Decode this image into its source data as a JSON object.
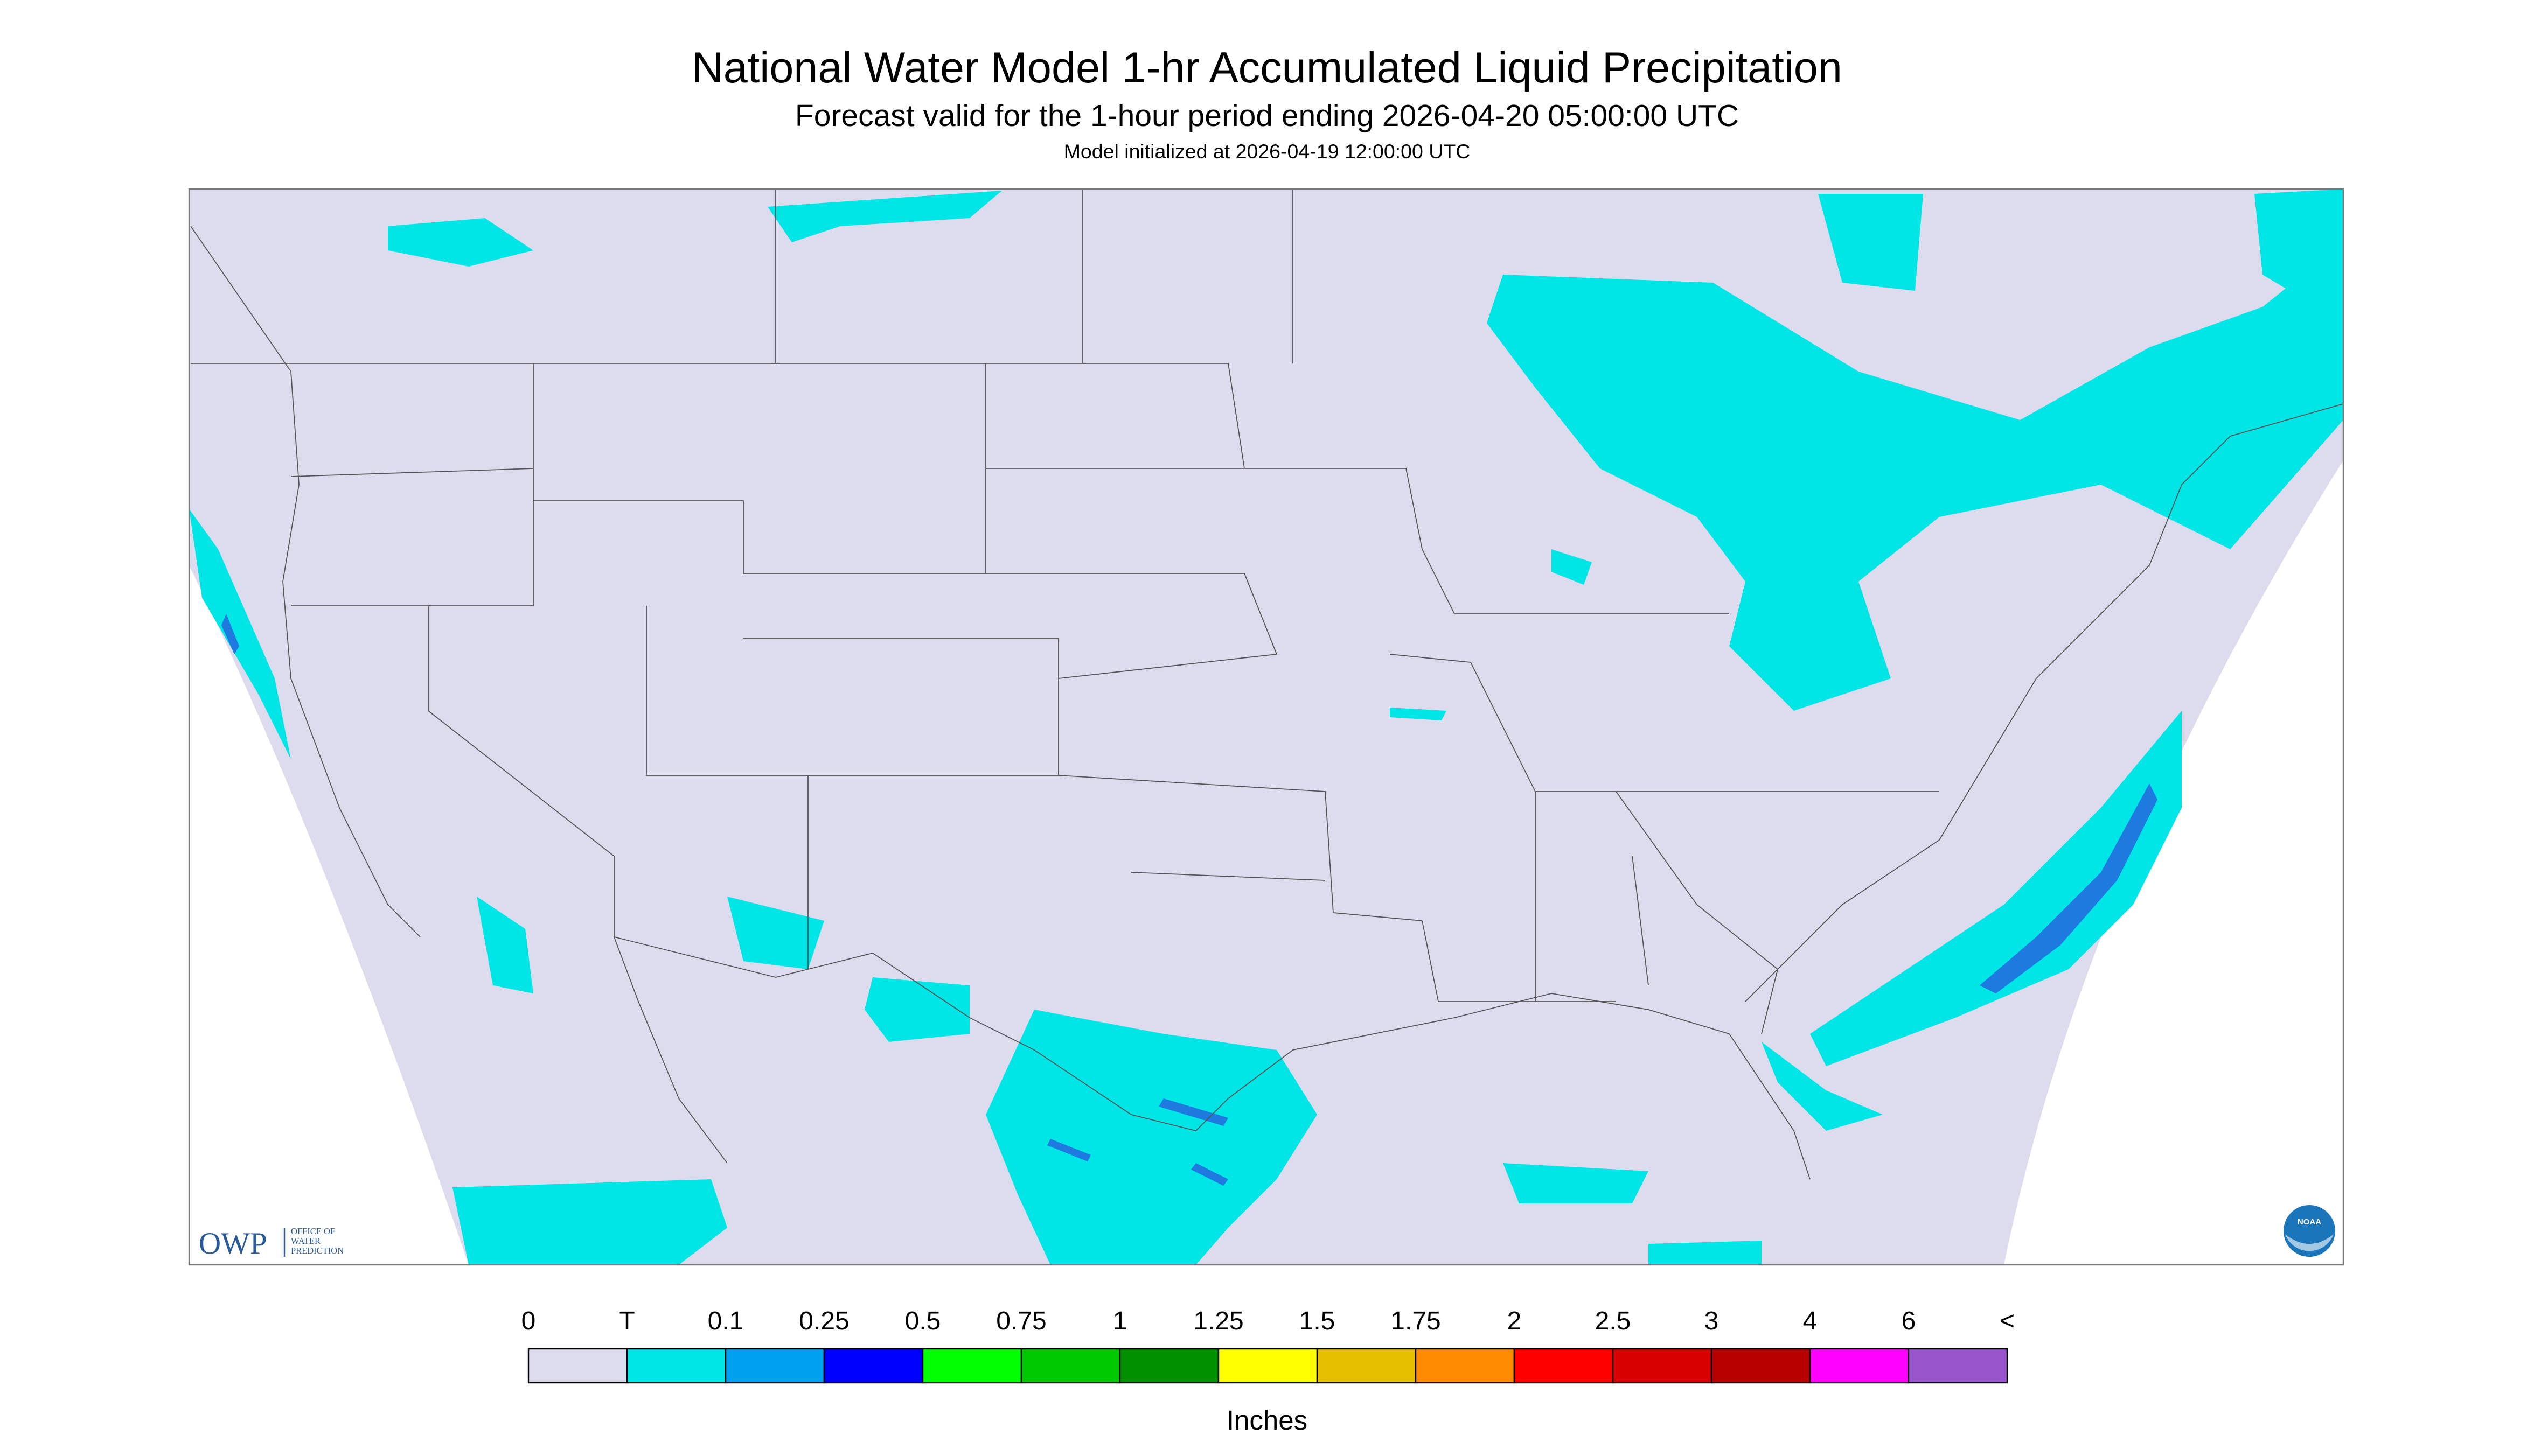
{
  "header": {
    "title": "National Water Model 1-hr Accumulated Liquid Precipitation",
    "subtitle": "Forecast valid for the 1-hour period ending 2026-04-20 05:00:00 UTC",
    "note": "Model initialized at 2026-04-19 12:00:00 UTC"
  },
  "legend": {
    "labels": [
      "0",
      "T",
      "0.1",
      "0.25",
      "0.5",
      "0.75",
      "1",
      "1.25",
      "1.5",
      "1.75",
      "2",
      "2.5",
      "3",
      "4",
      "6",
      "<"
    ],
    "colors": [
      "#dcdcee",
      "#00e5e5",
      "#00a0f0",
      "#0000ff",
      "#00ff00",
      "#00c800",
      "#009000",
      "#ffff00",
      "#e6c000",
      "#ff8c00",
      "#ff0000",
      "#d80000",
      "#b80000",
      "#ff00ff",
      "#9955cc"
    ],
    "unit": "Inches"
  },
  "logos": {
    "owp": "OWP",
    "owp_name": [
      "OFFICE OF",
      "WATER",
      "PREDICTION"
    ],
    "noaa": "NOAA"
  }
}
